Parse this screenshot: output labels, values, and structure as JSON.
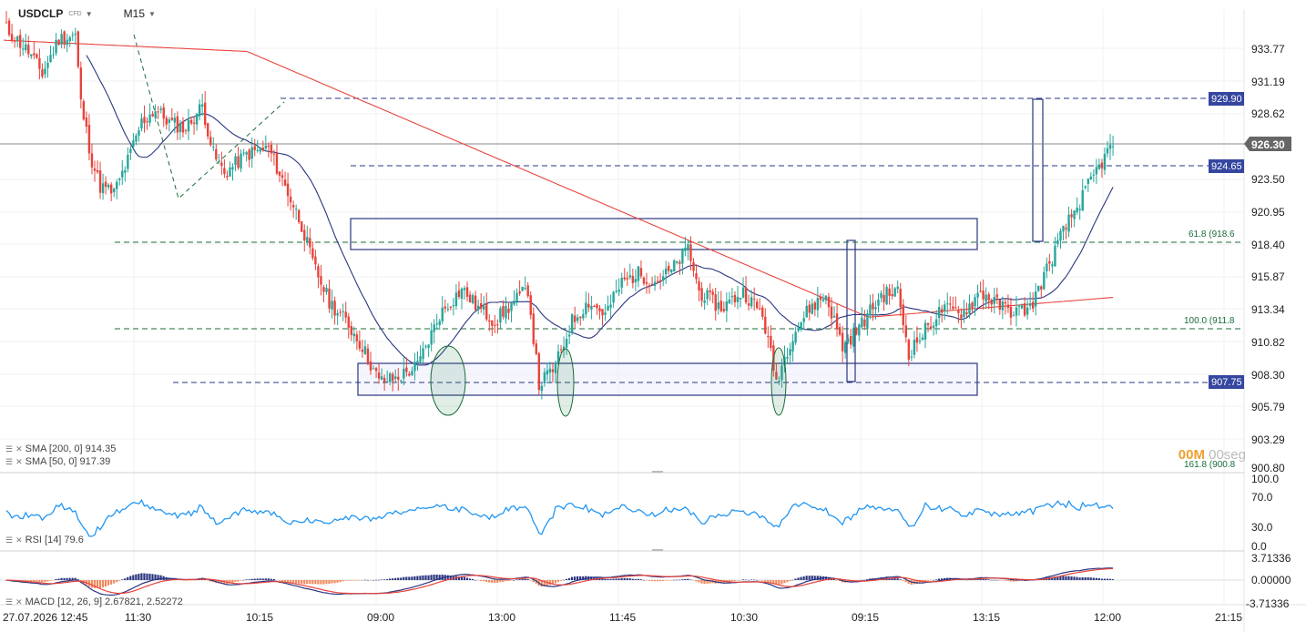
{
  "header": {
    "symbol": "USDCLP",
    "symbol_sub": "CFD",
    "timeframe": "M15"
  },
  "price_axis": {
    "ticks": [
      "933.77",
      "931.19",
      "928.62",
      "923.50",
      "920.95",
      "918.40",
      "915.87",
      "913.34",
      "910.82",
      "908.30",
      "905.79",
      "903.29",
      "900.80"
    ],
    "current_price": "926.30",
    "levels": [
      "929.90",
      "924.65",
      "907.75"
    ]
  },
  "fib_labels": [
    "61.8 (918.6",
    "100.0 (911.8",
    "161.8 (900.8"
  ],
  "time_axis": [
    "27.07.2026 12:45",
    "11:30",
    "10:15",
    "09:00",
    "13:00",
    "11:45",
    "10:30",
    "09:15",
    "13:15",
    "12:00",
    "21:15"
  ],
  "indicators": {
    "sma200": "SMA [200, 0] 914.35",
    "sma50": "SMA [50, 0] 917.39",
    "rsi": "RSI [14] 79.6",
    "rsi_ticks": [
      "100.0",
      "70.0",
      "30.0",
      "0.0"
    ],
    "macd": "MACD [12, 26, 9] 2.67821, 2.52272",
    "macd_ticks": [
      "3.71336",
      "0.00000",
      "-3.71336"
    ]
  },
  "timer": {
    "minutes": "00M",
    "seconds": "00seg"
  },
  "colors": {
    "up": "#26a69a",
    "down": "#e8433b",
    "sma50": "#2a3580",
    "sma200": "#e8433b",
    "rsi": "#2196f3",
    "box": "#2a3580",
    "fib": "#1b6b3a"
  },
  "chart_data": {
    "type": "candlestick",
    "instrument": "USDCLP",
    "timeframe": "M15",
    "ylim": [
      900.8,
      935.0
    ],
    "price_anchors": [
      [
        0,
        935.5
      ],
      [
        9,
        933.5
      ],
      [
        14,
        931.8
      ],
      [
        20,
        934.5
      ],
      [
        26,
        934.8
      ],
      [
        28,
        929.5
      ],
      [
        32,
        925
      ],
      [
        35,
        923
      ],
      [
        40,
        922.5
      ],
      [
        45,
        925
      ],
      [
        50,
        928
      ],
      [
        55,
        929
      ],
      [
        60,
        928
      ],
      [
        66,
        927.5
      ],
      [
        72,
        929.3
      ],
      [
        76,
        925.5
      ],
      [
        80,
        924
      ],
      [
        88,
        925.5
      ],
      [
        96,
        926
      ],
      [
        100,
        924
      ],
      [
        108,
        920
      ],
      [
        112,
        917
      ],
      [
        118,
        914
      ],
      [
        124,
        912.5
      ],
      [
        130,
        910.5
      ],
      [
        136,
        907.8
      ],
      [
        142,
        908
      ],
      [
        150,
        909
      ],
      [
        158,
        913
      ],
      [
        166,
        915
      ],
      [
        172,
        913.5
      ],
      [
        178,
        912.5
      ],
      [
        184,
        913.8
      ],
      [
        190,
        915
      ],
      [
        194,
        907.5
      ],
      [
        200,
        909
      ],
      [
        206,
        912.5
      ],
      [
        212,
        914
      ],
      [
        218,
        913
      ],
      [
        224,
        915.5
      ],
      [
        230,
        916.2
      ],
      [
        236,
        915.6
      ],
      [
        242,
        916.4
      ],
      [
        248,
        918.2
      ],
      [
        252,
        914.8
      ],
      [
        260,
        913.5
      ],
      [
        268,
        914.8
      ],
      [
        275,
        913
      ],
      [
        280,
        907.8
      ],
      [
        286,
        911.5
      ],
      [
        292,
        913.5
      ],
      [
        298,
        914.5
      ],
      [
        304,
        910.5
      ],
      [
        310,
        912
      ],
      [
        318,
        914.5
      ],
      [
        324,
        914.8
      ],
      [
        328,
        910
      ],
      [
        334,
        911.8
      ],
      [
        340,
        913.4
      ],
      [
        348,
        913.2
      ],
      [
        354,
        914.8
      ],
      [
        360,
        913.8
      ],
      [
        366,
        913.2
      ],
      [
        372,
        913.5
      ],
      [
        378,
        916.5
      ],
      [
        384,
        919.5
      ],
      [
        390,
        921.8
      ],
      [
        396,
        924.2
      ],
      [
        402,
        926.3
      ]
    ],
    "levels": {
      "resistance": 929.9,
      "level_2": 924.65,
      "support": 907.75,
      "fib_61_8": 918.6,
      "fib_100": 911.8,
      "fib_161_8": 900.8
    },
    "last_price": 926.3,
    "sma_50_last": 917.39,
    "sma_200_last": 914.35,
    "rsi_last": 79.6,
    "macd_last": [
      2.67821,
      2.52272
    ]
  }
}
